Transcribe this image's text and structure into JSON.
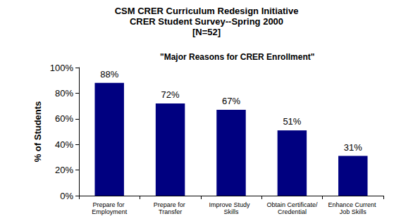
{
  "chart_data": {
    "type": "bar",
    "title": "CSM CRER Curriculum Redesign Initiative\nCRER Student Survey--Spring 2000\n[N=52]",
    "annotation": "\"Major Reasons for CRER Enrollment\"",
    "y_label": "% of Students",
    "categories": [
      "Prepare for Employment",
      "Prepare for Transfer",
      "Improve Study  Skills",
      "Obtain Certificate/Credential",
      "Enhance Current Job Skills"
    ],
    "values": [
      88,
      72,
      67,
      51,
      31
    ],
    "value_labels": [
      "88%",
      "72%",
      "67%",
      "51%",
      "31%"
    ],
    "data_labels": true,
    "color": "#000080",
    "ylim": [
      0,
      100
    ],
    "yticks": [
      {
        "value": 0,
        "label": "0%"
      },
      {
        "value": 20,
        "label": "20%"
      },
      {
        "value": 40,
        "label": "40%"
      },
      {
        "value": 60,
        "label": "60%"
      },
      {
        "value": 80,
        "label": "80%"
      },
      {
        "value": 100,
        "label": "100%"
      }
    ],
    "grid": false
  }
}
